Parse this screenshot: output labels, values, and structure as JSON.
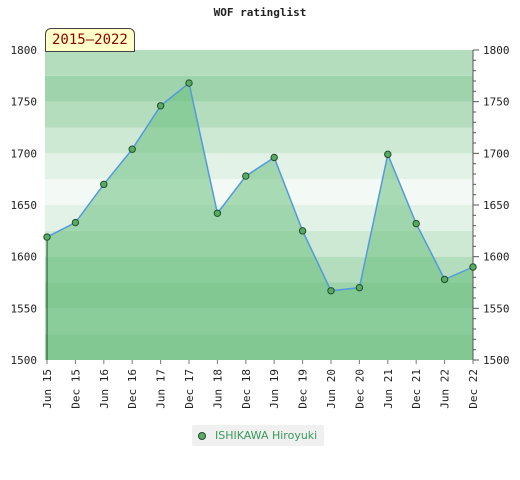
{
  "chart_data": {
    "type": "area",
    "title": "WOF ratinglist",
    "badge": "2015–2022",
    "x": [
      "Jun 15",
      "Dec 15",
      "Jun 16",
      "Dec 16",
      "Jun 17",
      "Dec 17",
      "Jun 18",
      "Dec 18",
      "Jun 19",
      "Dec 19",
      "Jun 20",
      "Dec 20",
      "Jun 21",
      "Dec 21",
      "Jun 22",
      "Dec 22"
    ],
    "series": [
      {
        "name": "ISHIKAWA Hiroyuki",
        "values": [
          1619,
          1633,
          1670,
          1704,
          1746,
          1768,
          1642,
          1678,
          1696,
          1625,
          1567,
          1570,
          1699,
          1632,
          1578,
          1590
        ]
      }
    ],
    "ylim": [
      1500,
      1800
    ],
    "yticks": [
      1500,
      1550,
      1600,
      1650,
      1700,
      1750,
      1800
    ],
    "grid": false,
    "legend_position": "bottom",
    "colors": {
      "line": "#5599dd",
      "area": "#6abf7e",
      "marker_fill": "#5aaa66",
      "marker_stroke": "#1f4f28",
      "band_colors": [
        "#9ed3ac",
        "#b3ddbd",
        "#cde8d3",
        "#e2f2e6",
        "#f3faf5"
      ]
    }
  }
}
